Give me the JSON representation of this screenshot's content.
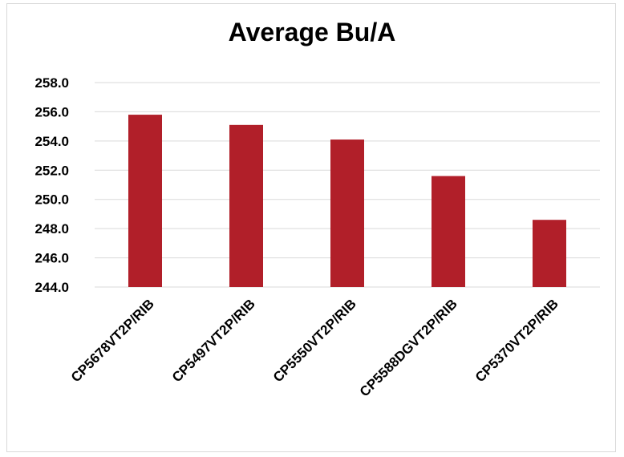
{
  "chart_data": {
    "type": "bar",
    "title": "Average Bu/A",
    "xlabel": "",
    "ylabel": "",
    "categories": [
      "CP5678VT2P/RIB",
      "CP5497VT2P/RIB",
      "CP5550VT2P/RIB",
      "CP5588DGVT2P/RIB",
      "CP5370VT2P/RIB"
    ],
    "values": [
      255.8,
      255.1,
      254.1,
      251.6,
      248.6
    ],
    "ylim": [
      244.0,
      258.0
    ],
    "yticks": [
      "244.0",
      "246.0",
      "248.0",
      "250.0",
      "252.0",
      "254.0",
      "256.0",
      "258.0"
    ],
    "grid": true,
    "legend": "none",
    "bar_color": "#b11f29",
    "grid_color": "#d9d9d9"
  }
}
